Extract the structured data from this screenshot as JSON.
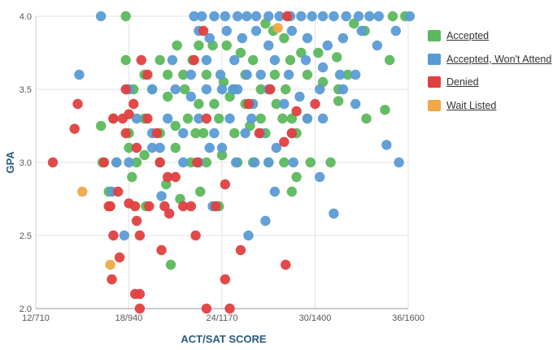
{
  "chart_data": {
    "type": "scatter",
    "xlabel": "ACT/SAT SCORE",
    "ylabel": "GPA",
    "xlim": [
      12,
      36
    ],
    "ylim": [
      2.0,
      4.0
    ],
    "x_ticks": [
      {
        "value": 12,
        "label": "12/710"
      },
      {
        "value": 18,
        "label": "18/940"
      },
      {
        "value": 24,
        "label": "24/1170"
      },
      {
        "value": 30,
        "label": "30/1400"
      },
      {
        "value": 36,
        "label": "36/1600"
      }
    ],
    "y_ticks": [
      {
        "value": 2.0,
        "label": "2.0"
      },
      {
        "value": 2.5,
        "label": "2.5"
      },
      {
        "value": 3.0,
        "label": "3.0"
      },
      {
        "value": 3.5,
        "label": "3.5"
      },
      {
        "value": 4.0,
        "label": "4.0"
      }
    ],
    "grid": true,
    "legend_position": "right",
    "series": [
      {
        "name": "Accepted",
        "color": "#5cb85c",
        "points": [
          [
            17.8,
            4.0
          ],
          [
            26.8,
            3.95
          ],
          [
            27.3,
            3.9
          ],
          [
            28.0,
            3.85
          ],
          [
            29.1,
            3.75
          ],
          [
            30.2,
            3.75
          ],
          [
            31.4,
            3.72
          ],
          [
            32.1,
            3.6
          ],
          [
            32.5,
            3.95
          ],
          [
            35.0,
            4.0
          ],
          [
            35.8,
            4.0
          ],
          [
            34.8,
            3.7
          ],
          [
            33.2,
            3.9
          ],
          [
            21.1,
            3.8
          ],
          [
            22.5,
            3.8
          ],
          [
            23.4,
            3.8
          ],
          [
            24.3,
            3.8
          ],
          [
            25.2,
            3.75
          ],
          [
            26.0,
            3.7
          ],
          [
            20.0,
            3.7
          ],
          [
            19.0,
            3.6
          ],
          [
            17.8,
            3.7
          ],
          [
            20.5,
            3.6
          ],
          [
            21.5,
            3.6
          ],
          [
            22.1,
            3.7
          ],
          [
            23.0,
            3.6
          ],
          [
            24.1,
            3.55
          ],
          [
            25.5,
            3.6
          ],
          [
            26.5,
            3.5
          ],
          [
            27.4,
            3.6
          ],
          [
            28.4,
            3.7
          ],
          [
            29.5,
            3.6
          ],
          [
            30.5,
            3.55
          ],
          [
            31.5,
            3.5
          ],
          [
            28.1,
            3.5
          ],
          [
            18.3,
            3.5
          ],
          [
            19.5,
            3.5
          ],
          [
            20.5,
            3.45
          ],
          [
            21.6,
            3.5
          ],
          [
            22.5,
            3.4
          ],
          [
            23.5,
            3.4
          ],
          [
            24.5,
            3.45
          ],
          [
            25.5,
            3.4
          ],
          [
            26.5,
            3.3
          ],
          [
            27.5,
            3.4
          ],
          [
            28.5,
            3.3
          ],
          [
            31.5,
            3.42
          ],
          [
            33.3,
            3.3
          ],
          [
            34.5,
            3.36
          ],
          [
            16.2,
            3.25
          ],
          [
            17.0,
            3.3
          ],
          [
            18.0,
            3.2
          ],
          [
            19.0,
            3.3
          ],
          [
            20.0,
            3.2
          ],
          [
            21.0,
            3.25
          ],
          [
            21.8,
            3.3
          ],
          [
            22.8,
            3.2
          ],
          [
            23.8,
            3.3
          ],
          [
            24.8,
            3.2
          ],
          [
            25.8,
            3.25
          ],
          [
            26.8,
            3.2
          ],
          [
            27.9,
            3.3
          ],
          [
            28.8,
            3.2
          ],
          [
            29.5,
            3.3
          ],
          [
            17.2,
            3.0
          ],
          [
            18.0,
            3.1
          ],
          [
            19.0,
            3.05
          ],
          [
            20.0,
            3.0
          ],
          [
            21.0,
            3.1
          ],
          [
            22.0,
            3.0
          ],
          [
            23.0,
            3.0
          ],
          [
            24.0,
            3.05
          ],
          [
            25.0,
            3.0
          ],
          [
            26.0,
            3.0
          ],
          [
            27.0,
            3.0
          ],
          [
            28.0,
            3.0
          ],
          [
            28.8,
            2.9
          ],
          [
            29.7,
            3.0
          ],
          [
            31.0,
            3.0
          ],
          [
            16.7,
            2.8
          ],
          [
            18.2,
            2.9
          ],
          [
            19.1,
            2.7
          ],
          [
            21.3,
            2.75
          ],
          [
            22.6,
            2.8
          ],
          [
            23.8,
            2.7
          ],
          [
            28.5,
            2.8
          ],
          [
            20.7,
            2.3
          ],
          [
            16.3,
            3.0
          ],
          [
            18.5,
            3.0
          ],
          [
            20.4,
            2.85
          ],
          [
            22.3,
            3.2
          ],
          [
            24.8,
            3.5
          ],
          [
            25.8,
            3.4
          ],
          [
            27.1,
            3.5
          ]
        ]
      },
      {
        "name": "Accepted, Won't Attend",
        "color": "#5b9bd5",
        "points": [
          [
            16.2,
            4.0
          ],
          [
            22.2,
            4.0
          ],
          [
            22.7,
            4.0
          ],
          [
            23.5,
            4.0
          ],
          [
            24.2,
            4.0
          ],
          [
            25.0,
            4.0
          ],
          [
            25.6,
            4.0
          ],
          [
            26.2,
            4.0
          ],
          [
            27.0,
            4.0
          ],
          [
            27.7,
            4.0
          ],
          [
            28.4,
            4.0
          ],
          [
            29.1,
            4.0
          ],
          [
            29.8,
            4.0
          ],
          [
            30.5,
            4.0
          ],
          [
            31.2,
            4.0
          ],
          [
            32.0,
            4.0
          ],
          [
            32.8,
            4.0
          ],
          [
            33.5,
            4.0
          ],
          [
            34.1,
            4.0
          ],
          [
            36.1,
            4.0
          ],
          [
            22.5,
            3.9
          ],
          [
            23.2,
            3.85
          ],
          [
            24.3,
            3.9
          ],
          [
            25.3,
            3.85
          ],
          [
            26.2,
            3.9
          ],
          [
            27.0,
            3.8
          ],
          [
            28.5,
            3.9
          ],
          [
            29.5,
            3.85
          ],
          [
            30.8,
            3.8
          ],
          [
            31.8,
            3.85
          ],
          [
            33.0,
            3.9
          ],
          [
            34.0,
            3.8
          ],
          [
            35.2,
            3.9
          ],
          [
            20.8,
            3.7
          ],
          [
            22.0,
            3.6
          ],
          [
            23.0,
            3.7
          ],
          [
            23.9,
            3.6
          ],
          [
            24.8,
            3.7
          ],
          [
            25.6,
            3.6
          ],
          [
            26.5,
            3.6
          ],
          [
            27.4,
            3.7
          ],
          [
            28.3,
            3.6
          ],
          [
            29.4,
            3.7
          ],
          [
            30.5,
            3.65
          ],
          [
            31.6,
            3.6
          ],
          [
            32.6,
            3.6
          ],
          [
            14.8,
            3.6
          ],
          [
            18.0,
            3.5
          ],
          [
            19.5,
            3.5
          ],
          [
            21.0,
            3.5
          ],
          [
            22.0,
            3.45
          ],
          [
            23.0,
            3.5
          ],
          [
            24.0,
            3.5
          ],
          [
            25.0,
            3.5
          ],
          [
            26.0,
            3.4
          ],
          [
            27.0,
            3.5
          ],
          [
            28.0,
            3.4
          ],
          [
            29.0,
            3.45
          ],
          [
            30.3,
            3.5
          ],
          [
            31.8,
            3.5
          ],
          [
            32.6,
            3.4
          ],
          [
            18.5,
            3.3
          ],
          [
            19.5,
            3.2
          ],
          [
            20.5,
            3.3
          ],
          [
            21.5,
            3.2
          ],
          [
            22.5,
            3.3
          ],
          [
            23.5,
            3.2
          ],
          [
            24.5,
            3.3
          ],
          [
            25.5,
            3.2
          ],
          [
            26.5,
            3.2
          ],
          [
            27.5,
            3.1
          ],
          [
            28.5,
            3.2
          ],
          [
            29.5,
            3.3
          ],
          [
            30.5,
            3.3
          ],
          [
            17.2,
            3.0
          ],
          [
            18.0,
            3.0
          ],
          [
            19.5,
            3.1
          ],
          [
            20.0,
            3.1
          ],
          [
            21.5,
            3.0
          ],
          [
            22.5,
            3.0
          ],
          [
            23.2,
            3.1
          ],
          [
            24.0,
            3.1
          ],
          [
            24.9,
            3.0
          ],
          [
            26.1,
            3.0
          ],
          [
            27.0,
            3.0
          ],
          [
            28.6,
            3.0
          ],
          [
            30.3,
            2.9
          ],
          [
            34.6,
            3.12
          ],
          [
            35.4,
            3.0
          ],
          [
            16.9,
            2.8
          ],
          [
            20.1,
            2.77
          ],
          [
            23.4,
            2.7
          ],
          [
            25.7,
            2.5
          ],
          [
            26.8,
            2.6
          ],
          [
            27.4,
            2.8
          ],
          [
            31.2,
            2.65
          ],
          [
            17.7,
            2.5
          ],
          [
            24.7,
            3.5
          ],
          [
            25.9,
            3.3
          ]
        ]
      },
      {
        "name": "Denied",
        "color": "#e04040",
        "points": [
          [
            28.2,
            4.0
          ],
          [
            13.1,
            3.0
          ],
          [
            14.7,
            3.4
          ],
          [
            14.5,
            3.23
          ],
          [
            16.4,
            3.0
          ],
          [
            17.0,
            3.3
          ],
          [
            17.6,
            3.3
          ],
          [
            18.0,
            3.33
          ],
          [
            17.8,
            3.2
          ],
          [
            17.8,
            3.5
          ],
          [
            18.3,
            3.4
          ],
          [
            18.5,
            3.1
          ],
          [
            19.2,
            3.3
          ],
          [
            18.8,
            3.7
          ],
          [
            19.2,
            3.6
          ],
          [
            19.8,
            3.2
          ],
          [
            20.0,
            3.0
          ],
          [
            20.5,
            2.9
          ],
          [
            21.0,
            2.9
          ],
          [
            20.3,
            2.7
          ],
          [
            20.6,
            2.65
          ],
          [
            21.5,
            2.7
          ],
          [
            22.0,
            2.7
          ],
          [
            22.2,
            3.7
          ],
          [
            22.4,
            3.0
          ],
          [
            22.8,
            3.9
          ],
          [
            23.0,
            3.3
          ],
          [
            23.6,
            2.7
          ],
          [
            22.3,
            2.5
          ],
          [
            24.2,
            2.85
          ],
          [
            23.0,
            2.0
          ],
          [
            24.2,
            2.2
          ],
          [
            24.5,
            2.0
          ],
          [
            25.2,
            2.4
          ],
          [
            25.7,
            3.4
          ],
          [
            26.4,
            3.2
          ],
          [
            27.1,
            3.5
          ],
          [
            28.1,
            2.3
          ],
          [
            28.5,
            3.2
          ],
          [
            28.0,
            3.14
          ],
          [
            28.8,
            3.35
          ],
          [
            30.0,
            3.4
          ],
          [
            16.8,
            2.7
          ],
          [
            17.0,
            2.5
          ],
          [
            17.3,
            2.8
          ],
          [
            16.9,
            2.2
          ],
          [
            17.4,
            2.35
          ],
          [
            18.4,
            2.7
          ],
          [
            18.5,
            2.6
          ],
          [
            18.7,
            2.5
          ],
          [
            18.7,
            2.1
          ],
          [
            18.4,
            2.1
          ],
          [
            18.7,
            2.0
          ],
          [
            19.3,
            2.7
          ],
          [
            20.1,
            2.4
          ],
          [
            16.7,
            2.7
          ],
          [
            18.0,
            2.72
          ]
        ]
      },
      {
        "name": "Wait Listed",
        "color": "#f0a848",
        "points": [
          [
            15.0,
            2.8
          ],
          [
            16.8,
            2.3
          ],
          [
            27.6,
            3.92
          ]
        ]
      }
    ]
  }
}
